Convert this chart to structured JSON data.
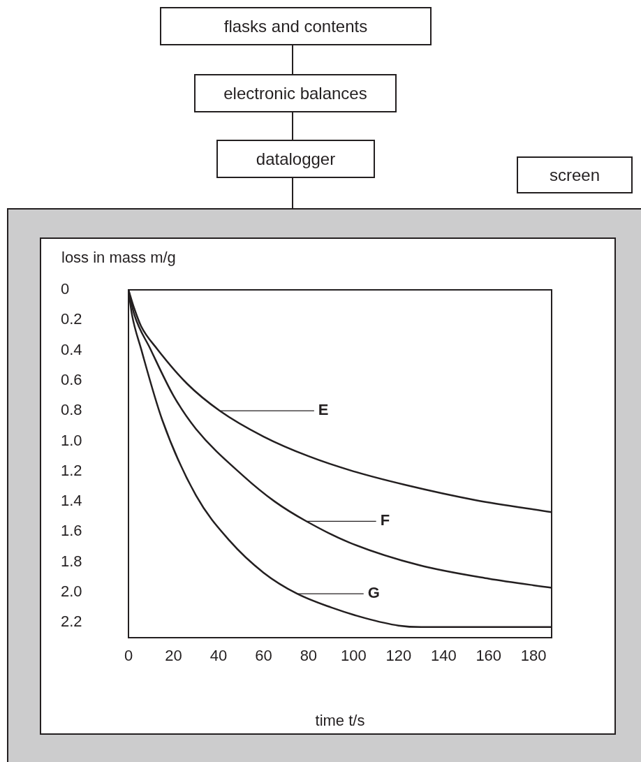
{
  "chart_data": {
    "type": "line",
    "xlabel": "time t/s",
    "ylabel": "loss in mass m/g",
    "annotations": [
      "flasks and contents",
      "electronic balances",
      "datalogger",
      "screen"
    ],
    "series": [
      {
        "name": "E",
        "color": "#231f20",
        "x": [
          0,
          2.5,
          5.6,
          12.7,
          26,
          40.6,
          60,
          80,
          100,
          123,
          154,
          188
        ],
        "values": [
          0,
          0.12,
          0.24,
          0.39,
          0.62,
          0.8,
          0.97,
          1.1,
          1.2,
          1.29,
          1.39,
          1.47
        ]
      },
      {
        "name": "F",
        "color": "#231f20",
        "x": [
          0,
          2.5,
          9.7,
          20,
          30,
          51,
          65,
          79,
          98,
          129,
          160,
          188
        ],
        "values": [
          0,
          0.16,
          0.39,
          0.7,
          0.92,
          1.23,
          1.4,
          1.53,
          1.67,
          1.82,
          1.91,
          1.97
        ]
      },
      {
        "name": "G",
        "color": "#231f20",
        "x": [
          0,
          1.5,
          5.6,
          15,
          30,
          45,
          60,
          75,
          90,
          105,
          120,
          130,
          188
        ],
        "values": [
          0,
          0.16,
          0.39,
          0.86,
          1.36,
          1.66,
          1.87,
          2.01,
          2.1,
          2.17,
          2.22,
          2.23,
          2.23
        ]
      }
    ],
    "xlim": [
      0,
      188
    ],
    "xticks": [
      0,
      20,
      40,
      60,
      80,
      100,
      120,
      140,
      160,
      180
    ],
    "ylim": [
      2.3,
      0
    ],
    "yticks": [
      0,
      {
        "value": 0.2,
        "label": "0.2"
      },
      {
        "value": 0.4,
        "label": "0.4"
      },
      {
        "value": 0.6,
        "label": "0.6"
      },
      {
        "value": 0.8,
        "label": "0.8"
      },
      {
        "value": 1,
        "label": "1.0"
      },
      {
        "value": 1.2,
        "label": "1.2"
      },
      {
        "value": 1.4,
        "label": "1.4"
      },
      {
        "value": 1.6,
        "label": "1.6"
      },
      {
        "value": 1.8,
        "label": "1.8"
      },
      {
        "value": 2,
        "label": "2.0"
      },
      {
        "value": 2.2,
        "label": "2.2"
      }
    ],
    "grid": false,
    "legend": "center",
    "marker": "none",
    "line_style": "solid"
  }
}
